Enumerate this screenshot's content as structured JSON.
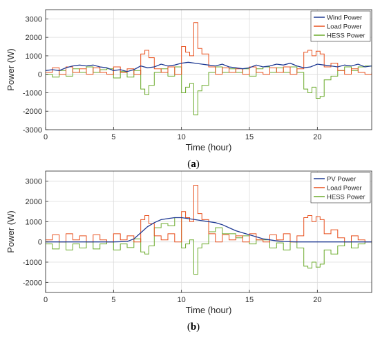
{
  "chart_data": [
    {
      "type": "line",
      "caption": "(a)",
      "caption_letter": "a",
      "xlabel": "Time (hour)",
      "ylabel": "Power (W)",
      "xlim": [
        0,
        24
      ],
      "ylim": [
        -3000,
        3500
      ],
      "xticks": [
        0,
        5,
        10,
        15,
        20
      ],
      "yticks": [
        -3000,
        -2000,
        -1000,
        0,
        1000,
        2000,
        3000
      ],
      "grid": true,
      "legend": "top-right",
      "series": [
        {
          "name": "Wind Power",
          "color": "#1f3a93",
          "x": [
            0,
            0.5,
            1,
            1.5,
            2,
            2.5,
            3,
            3.5,
            4,
            4.5,
            5,
            5.5,
            6,
            6.5,
            7,
            7.5,
            8,
            8.5,
            9,
            9.5,
            10,
            10.5,
            11,
            11.5,
            12,
            12.5,
            13,
            13.5,
            14,
            14.5,
            15,
            15.5,
            16,
            16.5,
            17,
            17.5,
            18,
            18.5,
            19,
            19.5,
            20,
            20.5,
            21,
            21.5,
            22,
            22.5,
            23,
            23.5,
            24
          ],
          "values": [
            200,
            250,
            200,
            350,
            450,
            500,
            450,
            500,
            400,
            350,
            200,
            250,
            150,
            250,
            450,
            350,
            400,
            550,
            450,
            500,
            600,
            650,
            600,
            550,
            500,
            450,
            550,
            400,
            350,
            300,
            350,
            500,
            400,
            450,
            550,
            500,
            600,
            450,
            350,
            400,
            550,
            500,
            450,
            400,
            500,
            450,
            550,
            400,
            450
          ]
        },
        {
          "name": "Load Power",
          "color": "#e8501e",
          "x": [
            0,
            0.5,
            1,
            1.5,
            2,
            2.5,
            3,
            3.5,
            4,
            4.5,
            5,
            5.5,
            6,
            6.5,
            7,
            7.3,
            7.6,
            8,
            8.5,
            9,
            9.5,
            10,
            10.3,
            10.6,
            10.9,
            11.2,
            11.5,
            12,
            12.5,
            13,
            13.5,
            14,
            14.5,
            15,
            15.5,
            16,
            16.5,
            17,
            17.5,
            18,
            18.5,
            19,
            19.3,
            19.6,
            19.9,
            20.2,
            20.5,
            21,
            21.5,
            22,
            22.5,
            23,
            23.5,
            24
          ],
          "values": [
            100,
            350,
            0,
            400,
            100,
            300,
            0,
            350,
            100,
            0,
            400,
            100,
            300,
            0,
            1100,
            1300,
            900,
            300,
            100,
            400,
            0,
            1500,
            1200,
            1000,
            2800,
            1400,
            1100,
            400,
            0,
            350,
            100,
            300,
            0,
            400,
            100,
            0,
            350,
            100,
            400,
            0,
            300,
            1200,
            1300,
            1000,
            1250,
            1100,
            400,
            600,
            200,
            0,
            300,
            100,
            0,
            100
          ]
        },
        {
          "name": "HESS Power",
          "color": "#6aaa2a",
          "x": [
            0,
            0.5,
            1,
            1.5,
            2,
            2.5,
            3,
            3.5,
            4,
            4.5,
            5,
            5.5,
            6,
            6.5,
            7,
            7.3,
            7.6,
            8,
            8.5,
            9,
            9.5,
            10,
            10.3,
            10.6,
            10.9,
            11.2,
            11.5,
            12,
            12.5,
            13,
            13.5,
            14,
            14.5,
            15,
            15.5,
            16,
            16.5,
            17,
            17.5,
            18,
            18.5,
            19,
            19.3,
            19.6,
            19.9,
            20.2,
            20.5,
            21,
            21.5,
            22,
            22.5,
            23,
            23.5,
            24
          ],
          "values": [
            0,
            -150,
            200,
            -100,
            300,
            100,
            400,
            100,
            250,
            300,
            -200,
            150,
            -150,
            200,
            -800,
            -1100,
            -600,
            100,
            300,
            -100,
            400,
            -1000,
            -700,
            -500,
            -2200,
            -900,
            -600,
            100,
            400,
            100,
            300,
            100,
            300,
            -100,
            300,
            400,
            100,
            350,
            100,
            400,
            100,
            -800,
            -1000,
            -700,
            -1300,
            -1200,
            -300,
            -100,
            200,
            400,
            200,
            400,
            450,
            350
          ]
        }
      ]
    },
    {
      "type": "line",
      "caption": "(b)",
      "caption_letter": "b",
      "xlabel": "Time (hour)",
      "ylabel": "Power (W)",
      "xlim": [
        0,
        24
      ],
      "ylim": [
        -2500,
        3500
      ],
      "xticks": [
        0,
        5,
        10,
        15,
        20
      ],
      "yticks": [
        -2000,
        -1000,
        0,
        1000,
        2000,
        3000
      ],
      "grid": true,
      "legend": "top-right",
      "series": [
        {
          "name": "PV Power",
          "color": "#1f3a93",
          "x": [
            0,
            1,
            2,
            3,
            4,
            5,
            6,
            6.5,
            7,
            7.5,
            8,
            8.5,
            9,
            9.5,
            10,
            10.5,
            11,
            11.5,
            12,
            12.5,
            13,
            13.5,
            14,
            14.5,
            15,
            15.5,
            16,
            16.5,
            17,
            17.5,
            18,
            18.5,
            19,
            20,
            21,
            22,
            23,
            24
          ],
          "values": [
            0,
            0,
            0,
            0,
            0,
            0,
            20,
            150,
            450,
            750,
            950,
            1100,
            1150,
            1200,
            1200,
            1150,
            1100,
            1050,
            1000,
            950,
            850,
            700,
            550,
            450,
            350,
            250,
            150,
            100,
            50,
            20,
            10,
            0,
            0,
            0,
            0,
            0,
            0,
            0
          ]
        },
        {
          "name": "Load Power",
          "color": "#e8501e",
          "x": [
            0,
            0.5,
            1,
            1.5,
            2,
            2.5,
            3,
            3.5,
            4,
            4.5,
            5,
            5.5,
            6,
            6.5,
            7,
            7.3,
            7.6,
            8,
            8.5,
            9,
            9.5,
            10,
            10.3,
            10.6,
            10.9,
            11.2,
            11.5,
            12,
            12.5,
            13,
            13.5,
            14,
            14.5,
            15,
            15.5,
            16,
            16.5,
            17,
            17.5,
            18,
            18.5,
            19,
            19.3,
            19.6,
            19.9,
            20.2,
            20.5,
            21,
            21.5,
            22,
            22.5,
            23,
            23.5,
            24
          ],
          "values": [
            100,
            350,
            0,
            400,
            100,
            300,
            0,
            350,
            100,
            0,
            400,
            100,
            300,
            0,
            1100,
            1300,
            900,
            300,
            100,
            400,
            0,
            1500,
            1200,
            1000,
            2800,
            1400,
            1100,
            400,
            0,
            350,
            100,
            300,
            0,
            400,
            100,
            0,
            350,
            100,
            400,
            0,
            300,
            1200,
            1300,
            1000,
            1250,
            1100,
            400,
            600,
            200,
            0,
            300,
            100,
            0,
            100
          ]
        },
        {
          "name": "HESS Power",
          "color": "#6aaa2a",
          "x": [
            0,
            0.5,
            1,
            1.5,
            2,
            2.5,
            3,
            3.5,
            4,
            4.5,
            5,
            5.5,
            6,
            6.5,
            7,
            7.3,
            7.6,
            8,
            8.5,
            9,
            9.5,
            10,
            10.3,
            10.6,
            10.9,
            11.2,
            11.5,
            12,
            12.5,
            13,
            13.5,
            14,
            14.5,
            15,
            15.5,
            16,
            16.5,
            17,
            17.5,
            18,
            18.5,
            19,
            19.3,
            19.6,
            19.9,
            20.2,
            20.5,
            21,
            21.5,
            22,
            22.5,
            23,
            23.5,
            24
          ],
          "values": [
            -100,
            -350,
            0,
            -400,
            -100,
            -300,
            0,
            -350,
            -100,
            0,
            -400,
            -100,
            -280,
            150,
            -500,
            -600,
            -200,
            700,
            900,
            800,
            1200,
            -300,
            -100,
            100,
            -1600,
            -300,
            -100,
            500,
            700,
            400,
            400,
            200,
            300,
            -100,
            100,
            100,
            -300,
            -50,
            -400,
            0,
            -300,
            -1200,
            -1300,
            -1000,
            -1250,
            -1100,
            -400,
            -600,
            -200,
            0,
            -300,
            -100,
            0,
            -100
          ]
        }
      ]
    }
  ]
}
